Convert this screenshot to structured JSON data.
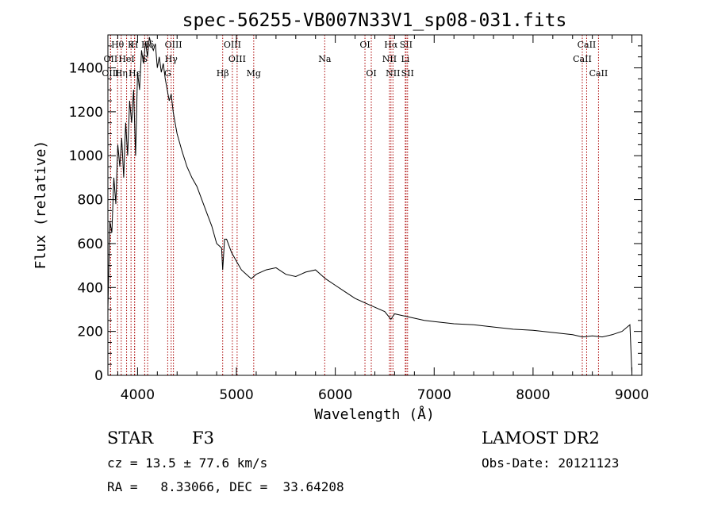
{
  "chart_data": {
    "type": "line",
    "title": "spec-56255-VB007N33V1_sp08-031.fits",
    "xlabel": "Wavelength (Å)",
    "ylabel": "Flux (relative)",
    "xlim": [
      3700,
      9100
    ],
    "ylim": [
      0,
      1550
    ],
    "x_ticks": [
      4000,
      5000,
      6000,
      7000,
      8000,
      9000
    ],
    "y_ticks": [
      0,
      200,
      400,
      600,
      800,
      1000,
      1200,
      1400
    ],
    "grid": false,
    "series": [
      {
        "x": [
          3700,
          3720,
          3740,
          3760,
          3780,
          3800,
          3820,
          3840,
          3860,
          3880,
          3900,
          3920,
          3940,
          3960,
          3980,
          4000,
          4020,
          4040,
          4060,
          4080,
          4100,
          4120,
          4140,
          4160,
          4180,
          4200,
          4220,
          4240,
          4260,
          4280,
          4300,
          4320,
          4340,
          4360,
          4380,
          4400,
          4450,
          4500,
          4550,
          4600,
          4650,
          4700,
          4750,
          4800,
          4850,
          4861,
          4880,
          4900,
          4950,
          5000,
          5050,
          5100,
          5150,
          5200,
          5300,
          5400,
          5500,
          5600,
          5700,
          5800,
          5900,
          6000,
          6100,
          6200,
          6300,
          6400,
          6500,
          6563,
          6600,
          6700,
          6800,
          6900,
          7000,
          7200,
          7400,
          7600,
          7800,
          8000,
          8200,
          8400,
          8500,
          8600,
          8700,
          8800,
          8900,
          8980,
          9000
        ],
        "y": [
          300,
          700,
          650,
          900,
          780,
          1050,
          950,
          1080,
          900,
          1150,
          1000,
          1250,
          1150,
          1300,
          1000,
          1380,
          1300,
          1480,
          1420,
          1520,
          1450,
          1540,
          1500,
          1480,
          1510,
          1400,
          1450,
          1380,
          1420,
          1350,
          1300,
          1250,
          1280,
          1200,
          1150,
          1100,
          1020,
          950,
          900,
          860,
          800,
          740,
          680,
          600,
          580,
          480,
          620,
          620,
          560,
          520,
          480,
          460,
          440,
          460,
          480,
          490,
          460,
          450,
          470,
          480,
          440,
          410,
          380,
          350,
          330,
          310,
          290,
          255,
          280,
          270,
          260,
          250,
          245,
          235,
          230,
          220,
          210,
          205,
          195,
          185,
          175,
          180,
          175,
          185,
          200,
          230,
          10
        ],
        "color": "#000000"
      }
    ],
    "line_markers": [
      {
        "label": "Hθ",
        "x": 3798,
        "row": 0
      },
      {
        "label": "K",
        "x": 3934,
        "row": 0
      },
      {
        "label": "H",
        "x": 3970,
        "row": 0
      },
      {
        "label": "Hδ",
        "x": 4102,
        "row": 0
      },
      {
        "label": "OIII",
        "x": 4363,
        "row": 0
      },
      {
        "label": "OIII",
        "x": 4959,
        "row": 0
      },
      {
        "label": "OI",
        "x": 6300,
        "row": 0
      },
      {
        "label": "Hα",
        "x": 6563,
        "row": 0
      },
      {
        "label": "SII",
        "x": 6716,
        "row": 0
      },
      {
        "label": "CaII",
        "x": 8542,
        "row": 0
      },
      {
        "label": "OII",
        "x": 3727,
        "row": 1
      },
      {
        "label": "HeI",
        "x": 3889,
        "row": 1
      },
      {
        "label": "S",
        "x": 4072,
        "row": 1
      },
      {
        "label": "Hγ",
        "x": 4340,
        "row": 1
      },
      {
        "label": "OIII",
        "x": 5007,
        "row": 1
      },
      {
        "label": "Na",
        "x": 5893,
        "row": 1
      },
      {
        "label": "NII",
        "x": 6548,
        "row": 1
      },
      {
        "label": "Li",
        "x": 6708,
        "row": 1
      },
      {
        "label": "CaII",
        "x": 8498,
        "row": 1
      },
      {
        "label": "OIII",
        "x": 3727,
        "row": 2
      },
      {
        "label": "Hη",
        "x": 3835,
        "row": 2
      },
      {
        "label": "Hε",
        "x": 3970,
        "row": 2
      },
      {
        "label": "G",
        "x": 4305,
        "row": 2
      },
      {
        "label": "Hβ",
        "x": 4861,
        "row": 2
      },
      {
        "label": "Mg",
        "x": 5175,
        "row": 2
      },
      {
        "label": "OI",
        "x": 6364,
        "row": 2
      },
      {
        "label": "NII",
        "x": 6583,
        "row": 2
      },
      {
        "label": "SII",
        "x": 6731,
        "row": 2
      },
      {
        "label": "CaII",
        "x": 8662,
        "row": 2
      }
    ],
    "line_marker_color": "#aa0000"
  },
  "info": {
    "class_label": "STAR",
    "subclass": "F3",
    "cz": "cz = 13.5 ± 77.6 km/s",
    "coords": "RA =   8.33066, DEC =  33.64208",
    "survey": "LAMOST DR2",
    "obs_date": "Obs-Date: 20121123"
  }
}
